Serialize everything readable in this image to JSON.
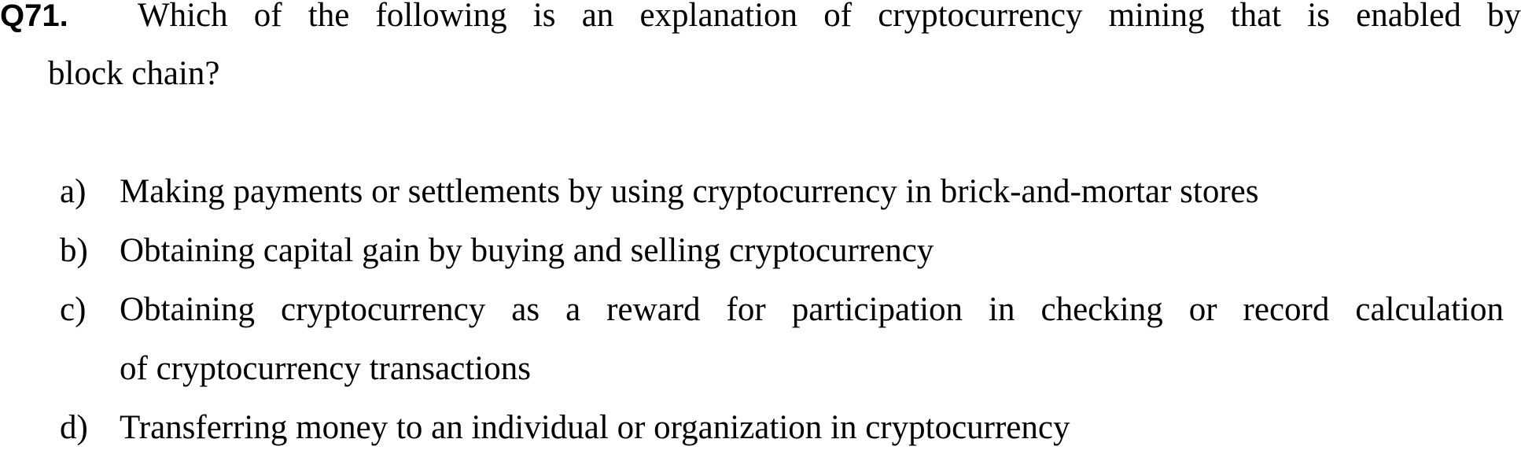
{
  "question": {
    "number": "Q71.",
    "text_line1": "Which of the following is an explanation of cryptocurrency mining that is enabled by",
    "text_line2": "block chain?"
  },
  "options": [
    {
      "letter": "a)",
      "text": "Making payments or settlements by using cryptocurrency in brick-and-mortar stores"
    },
    {
      "letter": "b)",
      "text": "Obtaining capital gain by buying and selling cryptocurrency"
    },
    {
      "letter": "c)",
      "text_line1": "Obtaining cryptocurrency as a reward for participation in checking or record calculation",
      "text_line2": "of cryptocurrency transactions"
    },
    {
      "letter": "d)",
      "text": "Transferring money to an individual or organization in cryptocurrency"
    }
  ]
}
